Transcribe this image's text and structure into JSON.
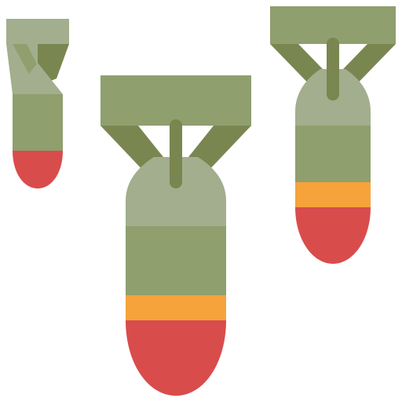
{
  "icon": {
    "name": "falling-bombs",
    "bomb_count": 3,
    "colors": {
      "background": "#ffffff",
      "fin_light": "#8f9f6d",
      "fin_dark": "#7a8650",
      "body": "#8f9f6d",
      "nose_light": "#a2ae8d",
      "band": "#f5a33a",
      "tip": "#d94c4c"
    }
  }
}
